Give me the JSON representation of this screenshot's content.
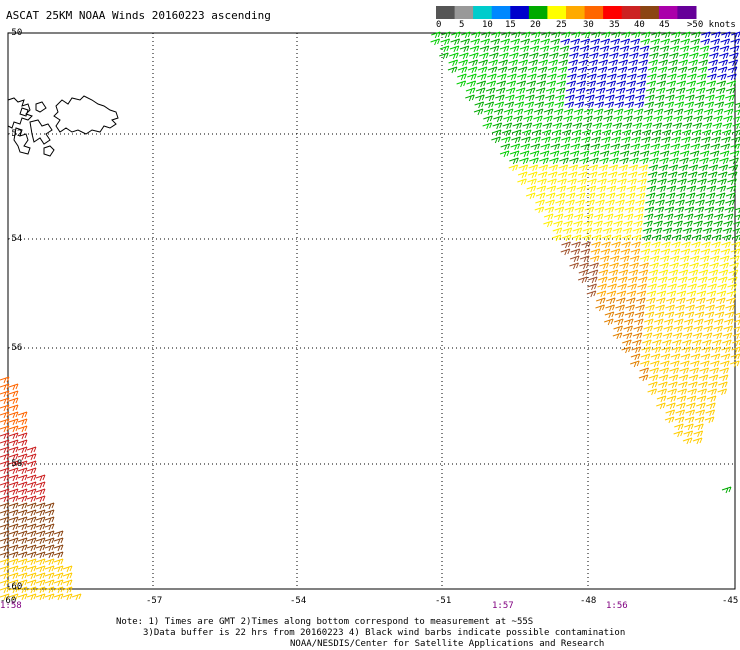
{
  "title": "ASCAT 25KM NOAA Winds 20160223 ascending",
  "legend": {
    "colors": [
      "#555555",
      "#999999",
      "#00cccc",
      "#0088ff",
      "#0000cc",
      "#00aa00",
      "#ffff00",
      "#ffaa00",
      "#ff6600",
      "#ff0000",
      "#cc2222",
      "#8b4513",
      "#aa00aa",
      "#660099"
    ],
    "labels": [
      "0",
      "5",
      "10",
      "15",
      "20",
      "25",
      "30",
      "35",
      "40",
      "45",
      ">50 knots"
    ]
  },
  "map": {
    "lat_labels": [
      "-50",
      "-52",
      "-54",
      "-56",
      "-58",
      "-60"
    ],
    "lon_labels": [
      "-57",
      "-54",
      "-51",
      "-48",
      "-45"
    ],
    "lon_left_label": "-60",
    "time_labels": [
      "1:58",
      "1:57",
      "1:56"
    ]
  },
  "notes": {
    "line1": "Note: 1) Times are GMT 2)Times along bottom correspond to measurement at ~55S",
    "line2": "3)Data buffer is 22 hrs from 20160223 4) Black wind barbs indicate possible contamination",
    "line3": "NOAA/NESDIS/Center for Satellite Applications and Research"
  }
}
